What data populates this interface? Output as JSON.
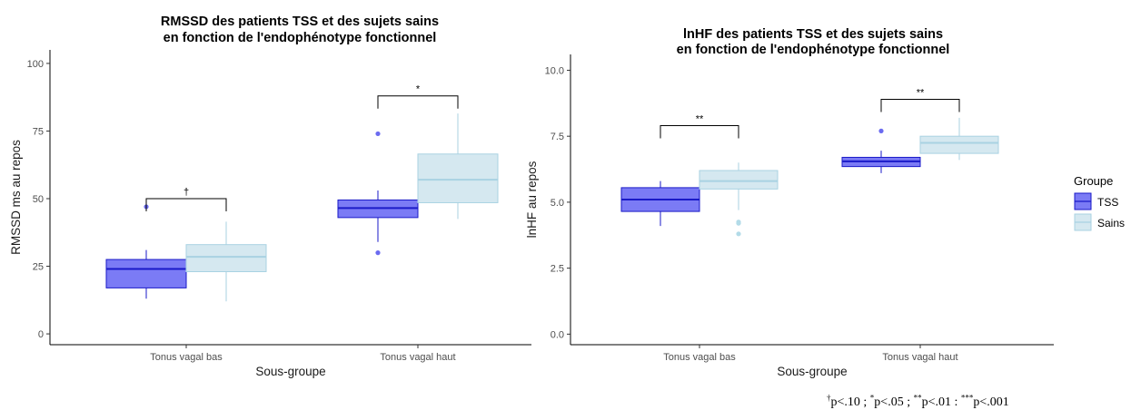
{
  "colors": {
    "tss_fill": "#7b7bf5",
    "tss_line": "#1a1ac8",
    "sains_fill": "#d5e8f0",
    "sains_line": "#a9d2e2"
  },
  "legend": {
    "title": "Groupe",
    "items": [
      "TSS",
      "Sains"
    ]
  },
  "chart_data": [
    {
      "type": "box",
      "title": "RMSSD des patients TSS et des sujets sains",
      "subtitle": "en fonction de l'endophénotype fonctionnel",
      "xlabel": "Sous-groupe",
      "ylabel": "RMSSD ms au repos",
      "ylim": [
        -4,
        105
      ],
      "yticks": [
        0,
        25,
        50,
        75,
        100
      ],
      "ytick_labels": [
        "0",
        "25",
        "50",
        "75",
        "100"
      ],
      "categories": [
        "Tonus vagal bas",
        "Tonus vagal haut"
      ],
      "grid": false,
      "series": [
        {
          "name": "TSS",
          "boxes": [
            {
              "lo": 13,
              "q1": 17,
              "median": 24,
              "q3": 27.5,
              "hi": 31,
              "outliers": [
                47
              ]
            },
            {
              "lo": 34,
              "q1": 43,
              "median": 46.5,
              "q3": 49.5,
              "hi": 53,
              "outliers": [
                74,
                30
              ]
            }
          ]
        },
        {
          "name": "Sains",
          "boxes": [
            {
              "lo": 12,
              "q1": 23,
              "median": 28.5,
              "q3": 33,
              "hi": 41.5,
              "outliers": []
            },
            {
              "lo": 42.5,
              "q1": 48.5,
              "median": 57,
              "q3": 66.5,
              "hi": 81.5,
              "outliers": []
            }
          ]
        }
      ],
      "significance": [
        {
          "category": "Tonus vagal bas",
          "label": "†",
          "y": 50
        },
        {
          "category": "Tonus vagal haut",
          "label": "*",
          "y": 88
        }
      ]
    },
    {
      "type": "box",
      "title": "lnHF des patients TSS et des sujets sains",
      "subtitle": "en fonction de l'endophénotype fonctionnel",
      "xlabel": "Sous-groupe",
      "ylabel": "lnHF au repos",
      "ylim": [
        -0.4,
        10.6
      ],
      "yticks": [
        0,
        2.5,
        5,
        7.5,
        10
      ],
      "ytick_labels": [
        "0.0",
        "2.5",
        "5.0",
        "7.5",
        "10.0"
      ],
      "categories": [
        "Tonus vagal bas",
        "Tonus vagal haut"
      ],
      "grid": false,
      "series": [
        {
          "name": "TSS",
          "boxes": [
            {
              "lo": 4.1,
              "q1": 4.65,
              "median": 5.1,
              "q3": 5.55,
              "hi": 5.8,
              "outliers": []
            },
            {
              "lo": 6.1,
              "q1": 6.35,
              "median": 6.55,
              "q3": 6.7,
              "hi": 6.95,
              "outliers": [
                7.7
              ]
            }
          ]
        },
        {
          "name": "Sains",
          "boxes": [
            {
              "lo": 4.7,
              "q1": 5.5,
              "median": 5.8,
              "q3": 6.2,
              "hi": 6.5,
              "outliers": [
                4.25,
                4.2,
                3.8
              ]
            },
            {
              "lo": 6.6,
              "q1": 6.85,
              "median": 7.25,
              "q3": 7.5,
              "hi": 8.2,
              "outliers": []
            }
          ]
        }
      ],
      "significance": [
        {
          "category": "Tonus vagal bas",
          "label": "**",
          "y": 7.9
        },
        {
          "category": "Tonus vagal haut",
          "label": "**",
          "y": 8.9
        }
      ]
    }
  ],
  "footnote": {
    "parts": [
      {
        "sup": "†",
        "text": "p<.10 ; "
      },
      {
        "sup": "*",
        "text": "p<.05 ; "
      },
      {
        "sup": "**",
        "text": "p<.01 : "
      },
      {
        "sup": "***",
        "text": "p<.001"
      }
    ]
  }
}
